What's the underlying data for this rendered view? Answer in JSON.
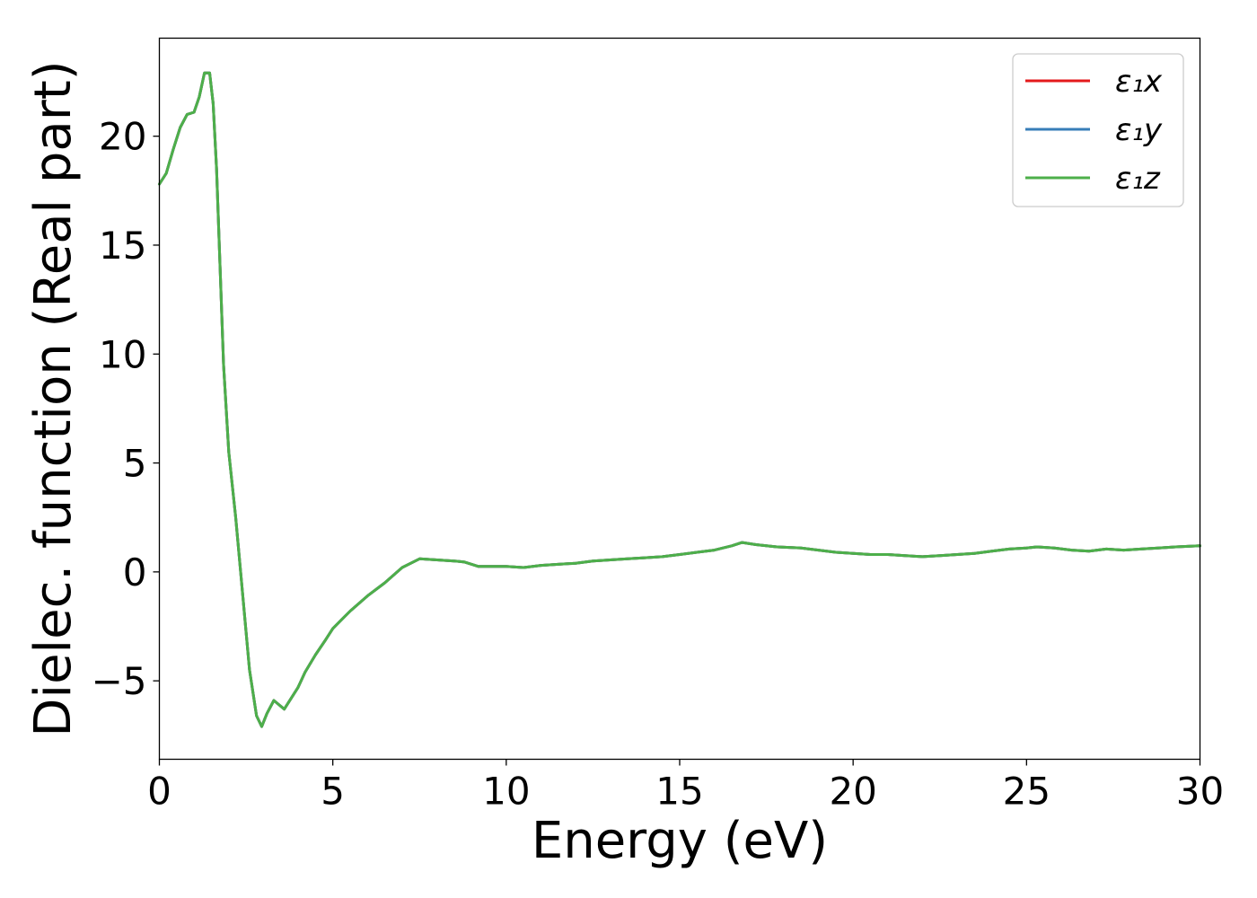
{
  "chart_data": {
    "type": "line",
    "title": "",
    "xlabel": "Energy (eV)",
    "ylabel": "Dielec. function (Real part)",
    "xlim": [
      0,
      30
    ],
    "ylim": [
      -8.6,
      24.5
    ],
    "xticks": [
      0,
      5,
      10,
      15,
      20,
      25,
      30
    ],
    "xtick_labels": [
      "0",
      "5",
      "10",
      "15",
      "20",
      "25",
      "30"
    ],
    "yticks": [
      -5,
      0,
      5,
      10,
      15,
      20
    ],
    "ytick_labels": [
      "−5",
      "0",
      "5",
      "10",
      "15",
      "20"
    ],
    "grid": false,
    "legend_position": "top-right",
    "x": [
      0,
      0.2,
      0.4,
      0.6,
      0.8,
      1.0,
      1.15,
      1.3,
      1.45,
      1.55,
      1.65,
      1.75,
      1.85,
      2.0,
      2.2,
      2.4,
      2.6,
      2.8,
      2.95,
      3.1,
      3.3,
      3.45,
      3.6,
      3.8,
      4.0,
      4.2,
      4.5,
      4.8,
      5.0,
      5.5,
      6.0,
      6.5,
      7.0,
      7.5,
      8.0,
      8.5,
      8.8,
      9.2,
      9.6,
      10.0,
      10.5,
      11.0,
      11.5,
      12.0,
      12.5,
      13.0,
      13.5,
      14.0,
      14.5,
      15.0,
      15.5,
      16.0,
      16.5,
      16.8,
      17.2,
      17.8,
      18.5,
      19.0,
      19.5,
      20.0,
      20.5,
      21.0,
      21.5,
      22.0,
      22.5,
      23.0,
      23.5,
      24.0,
      24.5,
      25.0,
      25.3,
      25.8,
      26.3,
      26.8,
      27.3,
      27.8,
      28.3,
      28.8,
      29.3,
      30.0
    ],
    "series": [
      {
        "name": "ε₁x",
        "color": "#e41a1c",
        "values": [
          17.8,
          18.3,
          19.4,
          20.4,
          21.0,
          21.1,
          21.8,
          22.9,
          22.9,
          21.5,
          18.5,
          14.0,
          9.5,
          5.5,
          2.5,
          -1.0,
          -4.5,
          -6.6,
          -7.1,
          -6.5,
          -5.9,
          -6.1,
          -6.3,
          -5.8,
          -5.3,
          -4.6,
          -3.8,
          -3.1,
          -2.6,
          -1.8,
          -1.1,
          -0.5,
          0.2,
          0.6,
          0.55,
          0.5,
          0.45,
          0.25,
          0.25,
          0.25,
          0.2,
          0.3,
          0.35,
          0.4,
          0.5,
          0.55,
          0.6,
          0.65,
          0.7,
          0.8,
          0.9,
          1.0,
          1.2,
          1.35,
          1.25,
          1.15,
          1.1,
          1.0,
          0.9,
          0.85,
          0.8,
          0.8,
          0.75,
          0.7,
          0.75,
          0.8,
          0.85,
          0.95,
          1.05,
          1.1,
          1.15,
          1.1,
          1.0,
          0.95,
          1.05,
          1.0,
          1.05,
          1.1,
          1.15,
          1.2
        ]
      },
      {
        "name": "ε₁y",
        "color": "#377eb8",
        "values": [
          17.8,
          18.3,
          19.4,
          20.4,
          21.0,
          21.1,
          21.8,
          22.9,
          22.9,
          21.5,
          18.5,
          14.0,
          9.5,
          5.5,
          2.5,
          -1.0,
          -4.5,
          -6.6,
          -7.1,
          -6.5,
          -5.9,
          -6.1,
          -6.3,
          -5.8,
          -5.3,
          -4.6,
          -3.8,
          -3.1,
          -2.6,
          -1.8,
          -1.1,
          -0.5,
          0.2,
          0.6,
          0.55,
          0.5,
          0.45,
          0.25,
          0.25,
          0.25,
          0.2,
          0.3,
          0.35,
          0.4,
          0.5,
          0.55,
          0.6,
          0.65,
          0.7,
          0.8,
          0.9,
          1.0,
          1.2,
          1.35,
          1.25,
          1.15,
          1.1,
          1.0,
          0.9,
          0.85,
          0.8,
          0.8,
          0.75,
          0.7,
          0.75,
          0.8,
          0.85,
          0.95,
          1.05,
          1.1,
          1.15,
          1.1,
          1.0,
          0.95,
          1.05,
          1.0,
          1.05,
          1.1,
          1.15,
          1.2
        ]
      },
      {
        "name": "ε₁z",
        "color": "#4daf4a",
        "values": [
          17.8,
          18.3,
          19.4,
          20.4,
          21.0,
          21.1,
          21.8,
          22.9,
          22.9,
          21.5,
          18.5,
          14.0,
          9.5,
          5.5,
          2.5,
          -1.0,
          -4.5,
          -6.6,
          -7.1,
          -6.5,
          -5.9,
          -6.1,
          -6.3,
          -5.8,
          -5.3,
          -4.6,
          -3.8,
          -3.1,
          -2.6,
          -1.8,
          -1.1,
          -0.5,
          0.2,
          0.6,
          0.55,
          0.5,
          0.45,
          0.25,
          0.25,
          0.25,
          0.2,
          0.3,
          0.35,
          0.4,
          0.5,
          0.55,
          0.6,
          0.65,
          0.7,
          0.8,
          0.9,
          1.0,
          1.2,
          1.35,
          1.25,
          1.15,
          1.1,
          1.0,
          0.9,
          0.85,
          0.8,
          0.8,
          0.75,
          0.7,
          0.75,
          0.8,
          0.85,
          0.95,
          1.05,
          1.1,
          1.15,
          1.1,
          1.0,
          0.95,
          1.05,
          1.0,
          1.05,
          1.1,
          1.15,
          1.2
        ]
      }
    ]
  }
}
